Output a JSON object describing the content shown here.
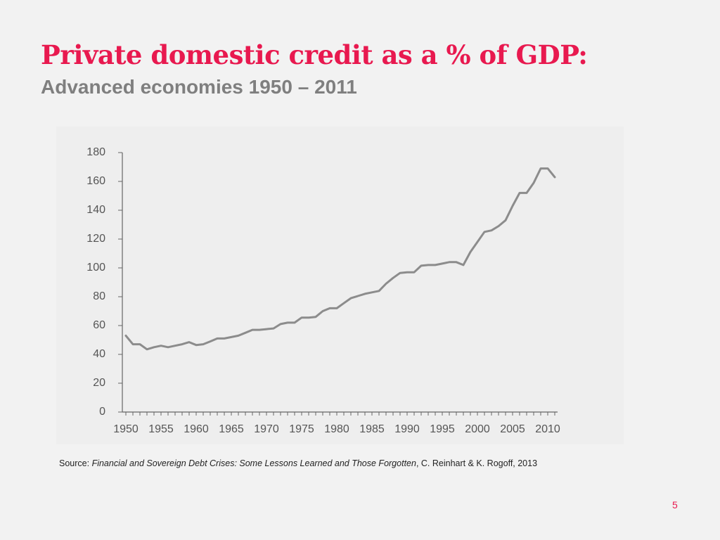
{
  "slide": {
    "title": "Private domestic credit as a % of GDP:",
    "subtitle": "Advanced economies 1950 – 2011",
    "source": {
      "prefix": "Source: ",
      "work": "Financial and Sovereign Debt Crises: Some Lessons Learned and Those Forgotten",
      "authors": ", C. Reinhart & K.  Rogoff, 2013"
    },
    "page_number": "5",
    "colors": {
      "title": "#e8194f",
      "subtitle": "#7f7f7f",
      "line": "#8c8c8c",
      "axis": "#666666"
    }
  },
  "chart_data": {
    "type": "line",
    "title": "",
    "xlabel": "",
    "ylabel": "",
    "xlim": [
      1950,
      2011
    ],
    "ylim": [
      0,
      180
    ],
    "x_ticks": [
      1950,
      1955,
      1960,
      1965,
      1970,
      1975,
      1980,
      1985,
      1990,
      1995,
      2000,
      2005,
      2010
    ],
    "x_tick_labels": [
      "1950",
      "1955",
      "1960",
      "1965",
      "1970",
      "1975",
      "1980",
      "1985",
      "1990",
      "1995",
      "2000",
      "2005",
      "2010"
    ],
    "y_ticks": [
      0,
      20,
      40,
      60,
      80,
      100,
      120,
      140,
      160,
      180
    ],
    "y_tick_labels": [
      "0",
      "20",
      "40",
      "60",
      "80",
      "100",
      "120",
      "140",
      "160",
      "180"
    ],
    "grid": false,
    "legend": "none",
    "series": [
      {
        "x": [
          1950,
          1951,
          1952,
          1953,
          1954,
          1955,
          1956,
          1957,
          1958,
          1959,
          1960,
          1961,
          1962,
          1963,
          1964,
          1965,
          1966,
          1967,
          1968,
          1969,
          1970,
          1971,
          1972,
          1973,
          1974,
          1975,
          1976,
          1977,
          1978,
          1979,
          1980,
          1981,
          1982,
          1983,
          1984,
          1985,
          1986,
          1987,
          1988,
          1989,
          1990,
          1991,
          1992,
          1993,
          1994,
          1995,
          1996,
          1997,
          1998,
          1999,
          2000,
          2001,
          2002,
          2003,
          2004,
          2005,
          2006,
          2007,
          2008,
          2009,
          2010,
          2011
        ],
        "values": [
          53,
          47,
          47,
          43.5,
          45,
          46,
          45,
          46,
          47,
          48.5,
          46.5,
          47,
          49,
          51,
          51,
          52,
          53,
          55,
          57,
          57,
          57.5,
          58,
          61,
          62,
          62,
          65.5,
          65.5,
          66,
          70,
          72,
          72,
          75.5,
          79,
          80.5,
          82,
          83,
          84,
          89,
          93,
          96.5,
          97,
          97,
          101.5,
          102,
          102,
          103,
          104,
          104,
          102,
          111,
          118,
          125,
          126,
          129,
          133,
          143,
          152,
          152,
          159,
          169,
          169,
          163
        ]
      }
    ]
  }
}
